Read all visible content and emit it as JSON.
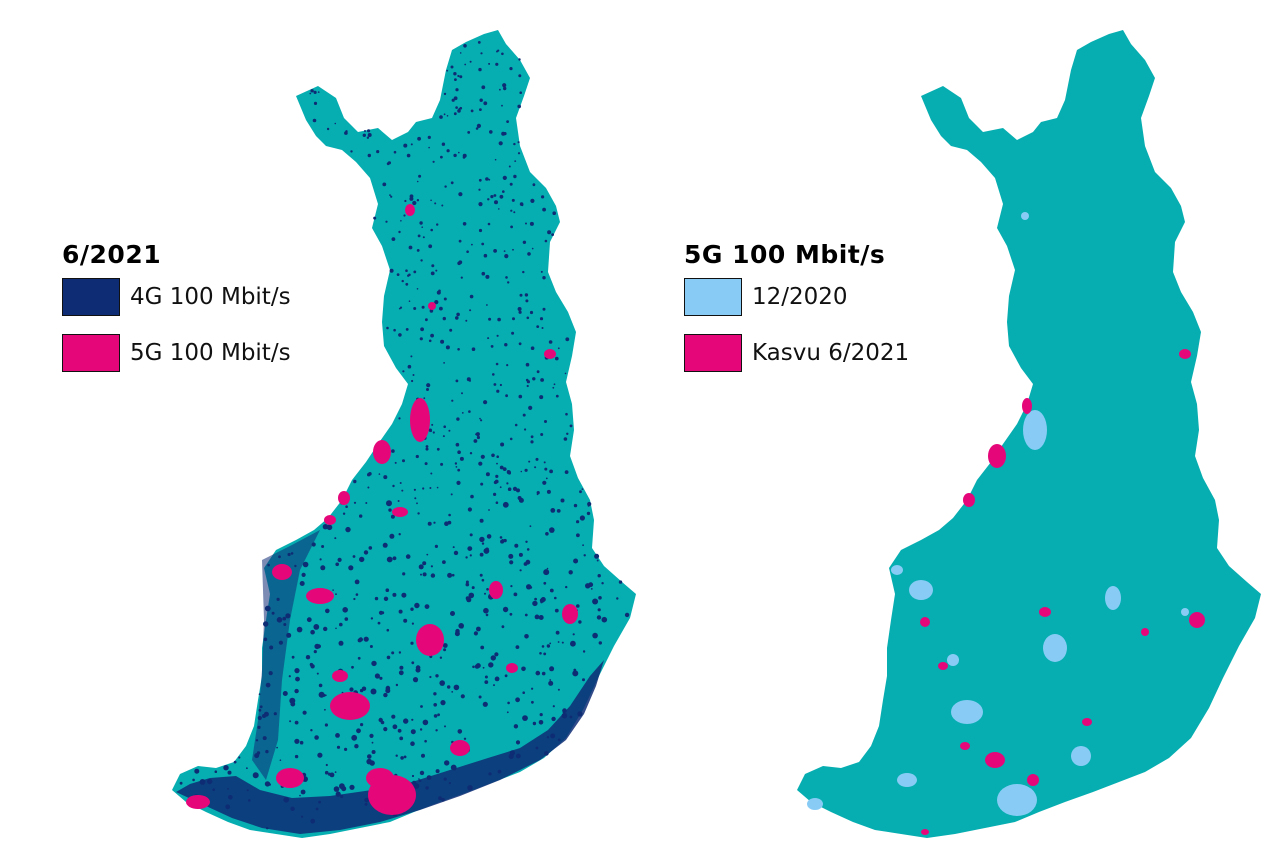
{
  "colors": {
    "land": "#06aeb1",
    "lte_4g": "#0e2c74",
    "nr_5g": "#e5067a",
    "nr_5g_2020": "#88ccf5"
  },
  "left_map": {
    "legend": {
      "title": "6/2021",
      "items": [
        {
          "label": "4G 100 Mbit/s",
          "color": "#0e2c74"
        },
        {
          "label": "5G 100 Mbit/s",
          "color": "#e5067a"
        }
      ]
    }
  },
  "right_map": {
    "legend": {
      "title": "5G 100 Mbit/s",
      "items": [
        {
          "label": "12/2020",
          "color": "#88ccf5"
        },
        {
          "label": "Kasvu 6/2021",
          "color": "#e5067a"
        }
      ]
    }
  }
}
